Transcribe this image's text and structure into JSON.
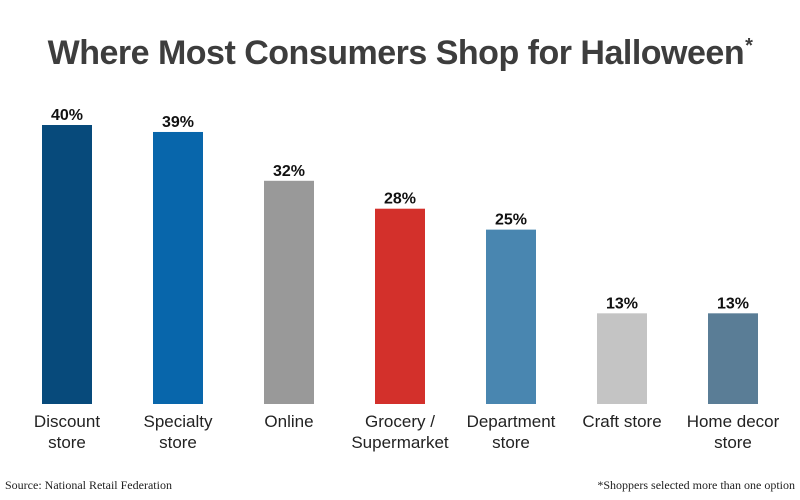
{
  "title": "Where Most Consumers Shop for Halloween",
  "title_mark": "*",
  "source": "Source: National Retail Federation",
  "footnote": "*Shoppers selected more than one option",
  "chart_data": {
    "type": "bar",
    "categories": [
      [
        "Discount",
        "store"
      ],
      [
        "Specialty",
        "store"
      ],
      [
        "Online"
      ],
      [
        "Grocery /",
        "Supermarket"
      ],
      [
        "Department",
        "store"
      ],
      [
        "Craft store"
      ],
      [
        "Home decor",
        "store"
      ]
    ],
    "values": [
      40,
      39,
      32,
      28,
      25,
      13,
      13
    ],
    "value_labels": [
      "40%",
      "39%",
      "32%",
      "28%",
      "25%",
      "13%",
      "13%"
    ],
    "colors": [
      "#074a7b",
      "#0866ab",
      "#999999",
      "#d3302b",
      "#4986b0",
      "#c4c4c4",
      "#5a7d96"
    ],
    "ylim": [
      0,
      40
    ],
    "grid": false
  }
}
